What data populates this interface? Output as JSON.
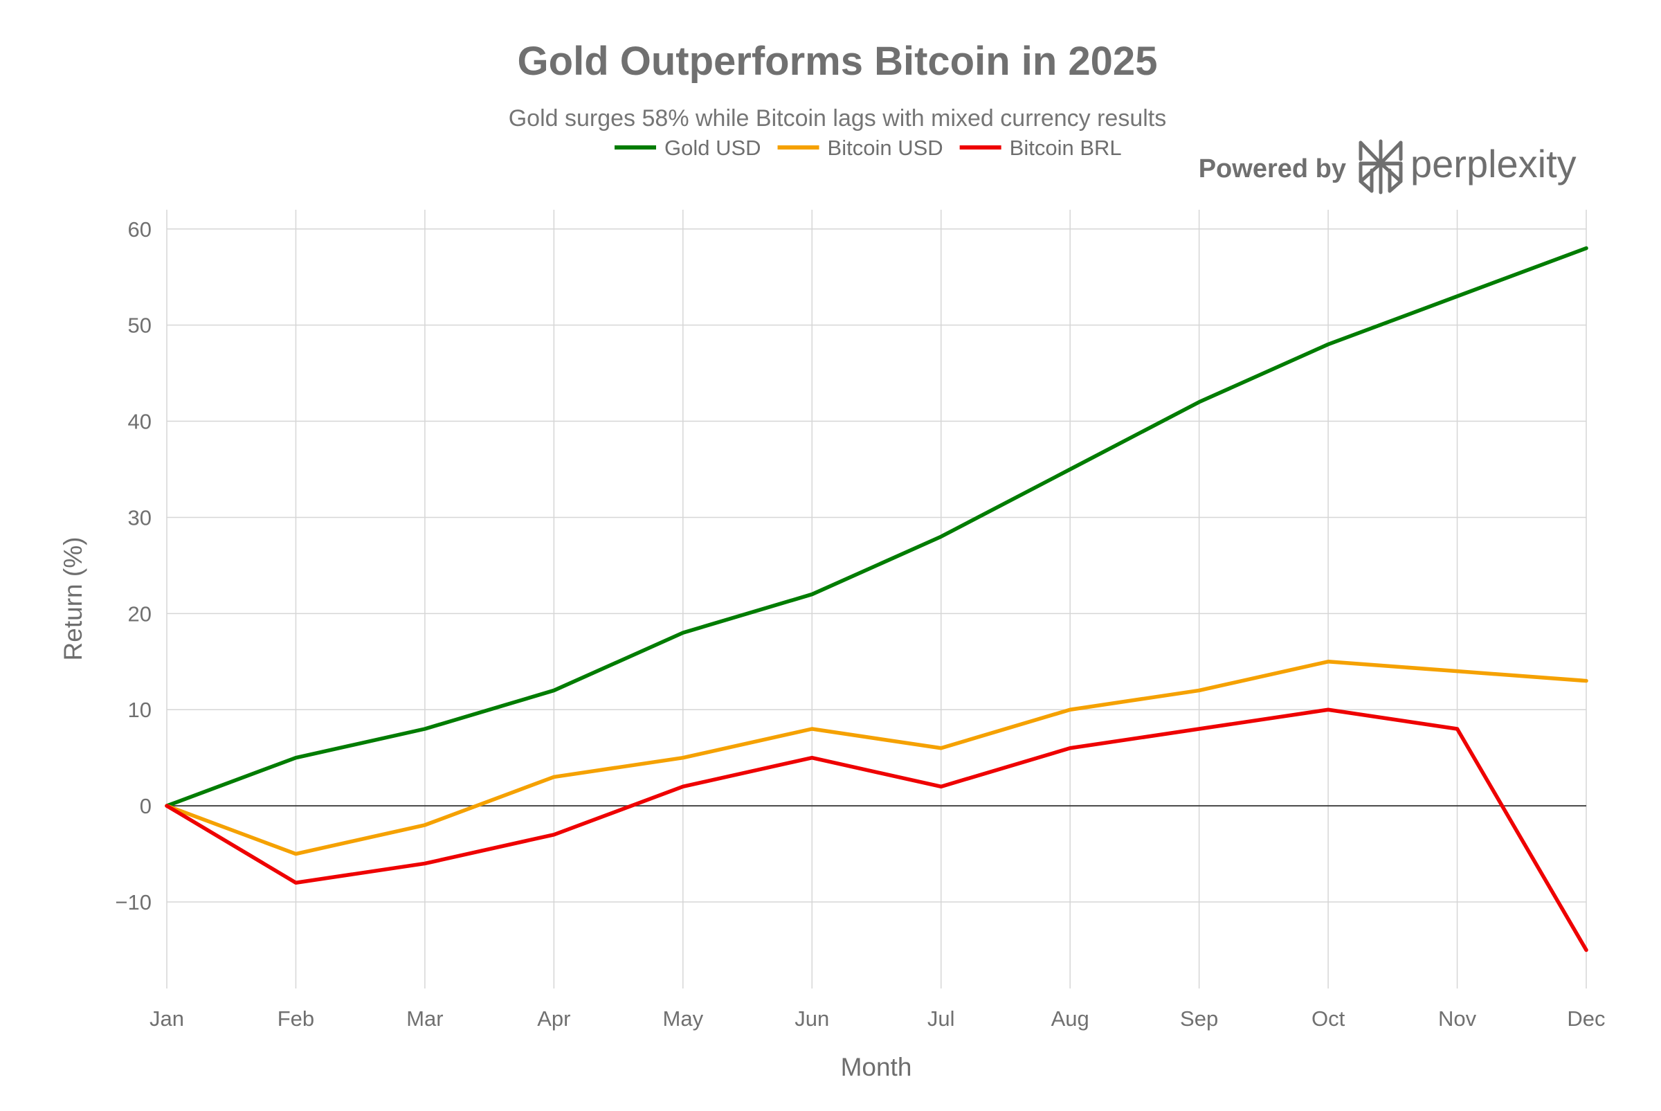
{
  "brand": {
    "powered_by": "Powered by",
    "name": "perplexity",
    "logo_icon": "perplexity-logo-icon"
  },
  "chart_data": {
    "type": "line",
    "title": "Gold Outperforms Bitcoin in 2025",
    "subtitle": "Gold surges 58% while Bitcoin lags with mixed currency results",
    "xlabel": "Month",
    "ylabel": "Return (%)",
    "categories": [
      "Jan",
      "Feb",
      "Mar",
      "Apr",
      "May",
      "Jun",
      "Jul",
      "Aug",
      "Sep",
      "Oct",
      "Nov",
      "Dec"
    ],
    "ylim": [
      -19,
      62
    ],
    "yticks": [
      -10,
      0,
      10,
      20,
      30,
      40,
      50,
      60
    ],
    "ytick_labels": [
      "−10",
      "0",
      "10",
      "20",
      "30",
      "40",
      "50",
      "60"
    ],
    "grid": true,
    "zero_line": true,
    "legend_position": "top-center",
    "series": [
      {
        "name": "Gold USD",
        "color": "#007c00",
        "values": [
          0,
          5,
          8,
          12,
          18,
          22,
          28,
          35,
          42,
          48,
          53,
          58
        ]
      },
      {
        "name": "Bitcoin USD",
        "color": "#f5a100",
        "values": [
          0,
          -5,
          -2,
          3,
          5,
          8,
          6,
          10,
          12,
          15,
          14,
          13
        ]
      },
      {
        "name": "Bitcoin BRL",
        "color": "#ee0000",
        "values": [
          0,
          -8,
          -6,
          -3,
          2,
          5,
          2,
          6,
          8,
          10,
          8,
          -15
        ]
      }
    ]
  }
}
